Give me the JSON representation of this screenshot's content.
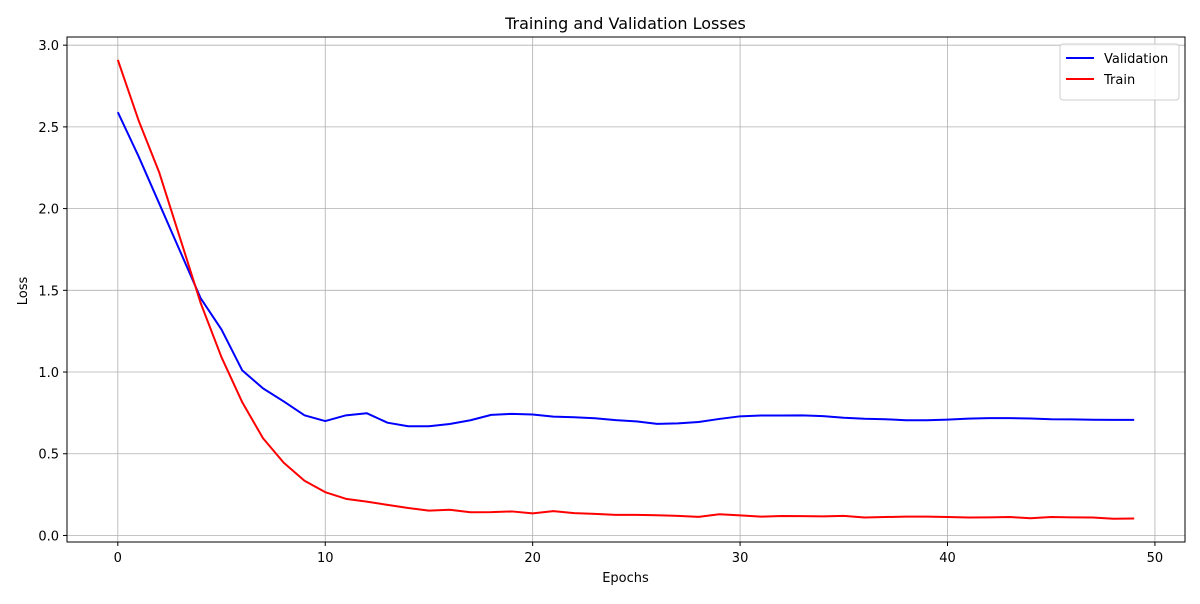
{
  "chart_data": {
    "type": "line",
    "title": "Training and Validation Losses",
    "xlabel": "Epochs",
    "ylabel": "Loss",
    "xlim": [
      -2.45,
      51.45
    ],
    "ylim": [
      -0.04,
      3.05
    ],
    "x_ticks": [
      0,
      10,
      20,
      30,
      40,
      50
    ],
    "y_ticks": [
      0.0,
      0.5,
      1.0,
      1.5,
      2.0,
      2.5,
      3.0
    ],
    "x_tick_labels": [
      "0",
      "10",
      "20",
      "30",
      "40",
      "50"
    ],
    "y_tick_labels": [
      "0.0",
      "0.5",
      "1.0",
      "1.5",
      "2.0",
      "2.5",
      "3.0"
    ],
    "grid": true,
    "legend_position": "top-right",
    "x": [
      0,
      1,
      2,
      3,
      4,
      5,
      6,
      7,
      8,
      9,
      10,
      11,
      12,
      13,
      14,
      15,
      16,
      17,
      18,
      19,
      20,
      21,
      22,
      23,
      24,
      25,
      26,
      27,
      28,
      29,
      30,
      31,
      32,
      33,
      34,
      35,
      36,
      37,
      38,
      39,
      40,
      41,
      42,
      43,
      44,
      45,
      46,
      47,
      48,
      49
    ],
    "series": [
      {
        "name": "Validation",
        "color": "#0000ff",
        "values": [
          2.59,
          2.32,
          2.03,
          1.74,
          1.45,
          1.26,
          1.01,
          0.9,
          0.82,
          0.735,
          0.7,
          0.735,
          0.748,
          0.69,
          0.668,
          0.668,
          0.682,
          0.705,
          0.738,
          0.744,
          0.74,
          0.727,
          0.723,
          0.717,
          0.706,
          0.698,
          0.683,
          0.686,
          0.694,
          0.713,
          0.729,
          0.734,
          0.734,
          0.735,
          0.73,
          0.72,
          0.714,
          0.711,
          0.705,
          0.705,
          0.709,
          0.715,
          0.718,
          0.718,
          0.716,
          0.711,
          0.71,
          0.708,
          0.707,
          0.707
        ]
      },
      {
        "name": "Train",
        "color": "#ff0000",
        "values": [
          2.91,
          2.54,
          2.22,
          1.82,
          1.42,
          1.09,
          0.815,
          0.595,
          0.445,
          0.335,
          0.265,
          0.224,
          0.207,
          0.187,
          0.168,
          0.152,
          0.157,
          0.142,
          0.143,
          0.147,
          0.135,
          0.149,
          0.137,
          0.132,
          0.126,
          0.126,
          0.124,
          0.12,
          0.114,
          0.13,
          0.123,
          0.115,
          0.119,
          0.118,
          0.117,
          0.12,
          0.11,
          0.113,
          0.115,
          0.115,
          0.113,
          0.11,
          0.111,
          0.113,
          0.105,
          0.113,
          0.111,
          0.11,
          0.102,
          0.104
        ]
      }
    ]
  }
}
